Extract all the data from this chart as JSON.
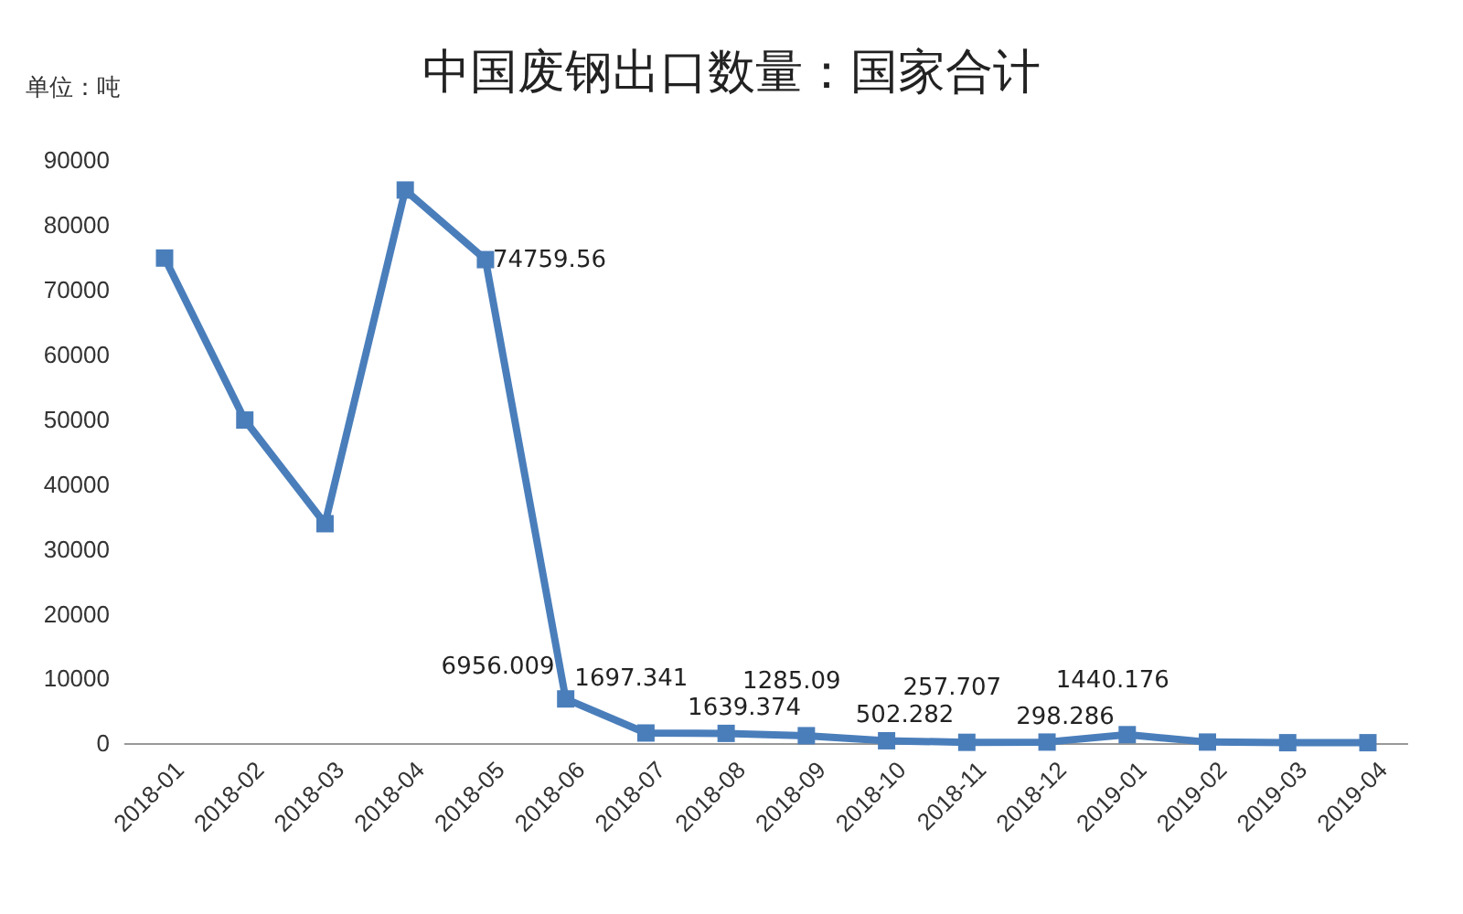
{
  "chart_data": {
    "type": "line",
    "title": "中国废钢出口数量：国家合计",
    "ylabel": "单位：吨",
    "categories": [
      "2018-01",
      "2018-02",
      "2018-03",
      "2018-04",
      "2018-05",
      "2018-06",
      "2018-07",
      "2018-08",
      "2018-09",
      "2018-10",
      "2018-11",
      "2018-12",
      "2019-01",
      "2019-02",
      "2019-03",
      "2019-04"
    ],
    "series": [
      {
        "color": "#4a7ebb",
        "values": [
          75000,
          50000,
          34000,
          85500,
          74759.56,
          6956.009,
          1697.341,
          1639.374,
          1285.09,
          502.282,
          257.707,
          298.286,
          1440.176,
          300,
          200,
          200
        ],
        "value_labels": [
          null,
          null,
          null,
          null,
          "74759.56",
          "6956.009",
          "1697.341",
          "1639.374",
          "1285.09",
          "502.282",
          "257.707",
          "298.286",
          "1440.176",
          null,
          null,
          null
        ]
      }
    ],
    "ylim": [
      0,
      90000
    ],
    "yticks": [
      0,
      10000,
      20000,
      30000,
      40000,
      50000,
      60000,
      70000,
      80000,
      90000
    ],
    "grid": false,
    "marker": "square",
    "line_style": "solid"
  }
}
